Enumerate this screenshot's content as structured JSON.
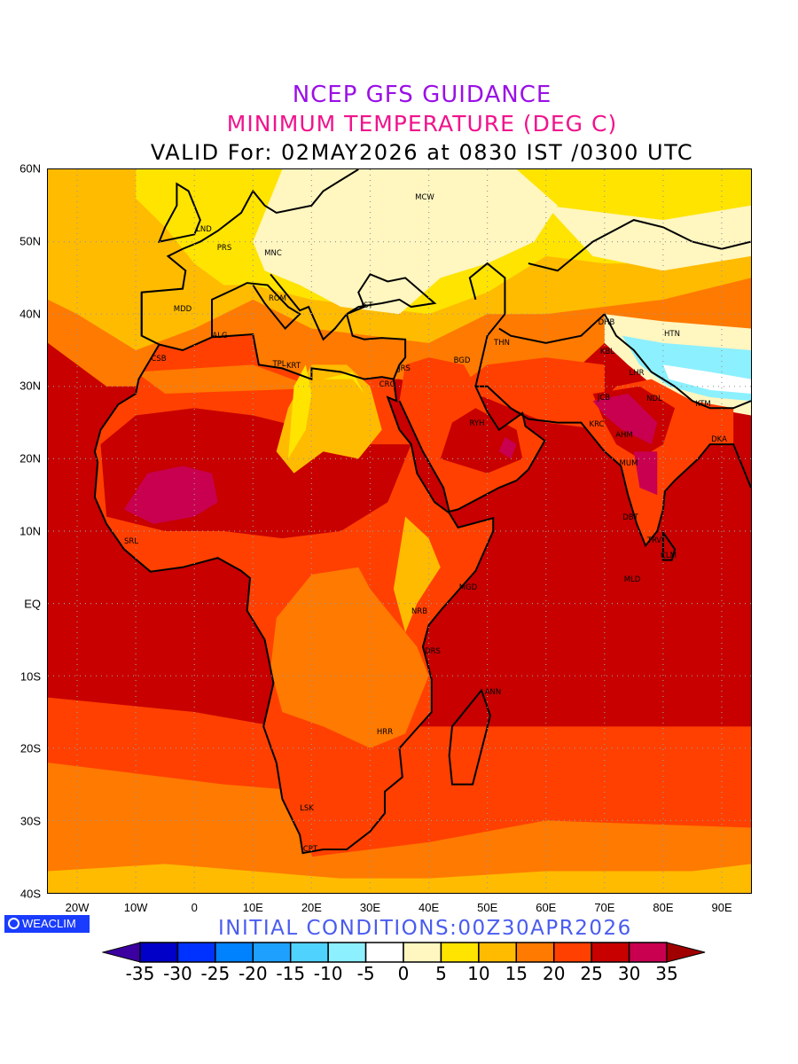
{
  "header": {
    "line1": "NCEP GFS GUIDANCE",
    "line2": "MINIMUM TEMPERATURE (DEG C)",
    "line3": "VALID For: 02MAY2026 at 0830 IST /0300 UTC"
  },
  "axes": {
    "lat_labels": [
      "60N",
      "50N",
      "40N",
      "30N",
      "20N",
      "10N",
      "EQ",
      "10S",
      "20S",
      "30S",
      "40S"
    ],
    "lon_labels": [
      "20W",
      "10W",
      "0",
      "10E",
      "20E",
      "30E",
      "40E",
      "50E",
      "60E",
      "70E",
      "80E",
      "90E"
    ]
  },
  "cities": [
    "MCW",
    "LND",
    "PRS",
    "MNC",
    "ROM",
    "MDD",
    "IST",
    "ALG",
    "CSB",
    "TPL",
    "KRT",
    "CRO",
    "JRS",
    "BGD",
    "THN",
    "DHB",
    "KBL",
    "HTN",
    "LHR",
    "JCB",
    "NDL",
    "KTM",
    "KRC",
    "AHM",
    "DKA",
    "MUM",
    "RYH",
    "DBT",
    "TRV",
    "CLM",
    "MLD",
    "SRL",
    "MGD",
    "NRB",
    "DRS",
    "ANN",
    "HRR",
    "LSK",
    "CPT"
  ],
  "footer": {
    "logo": "WEACLIM",
    "initial": "INITIAL CONDITIONS:00Z30APR2026"
  },
  "colorbar": {
    "labels": [
      "-35",
      "-30",
      "-25",
      "-20",
      "-15",
      "-10",
      "-5",
      "0",
      "5",
      "10",
      "15",
      "20",
      "25",
      "30",
      "35"
    ],
    "colors": [
      "#0000c8",
      "#0032ff",
      "#0082ff",
      "#1ea0ff",
      "#50d2ff",
      "#8cf0ff",
      "#ffffff",
      "#fff6c0",
      "#ffe400",
      "#ffbb00",
      "#ff7a00",
      "#ff4000",
      "#c80000",
      "#c8004f"
    ],
    "under_color": "#3c00a0",
    "over_color": "#a00000"
  }
}
